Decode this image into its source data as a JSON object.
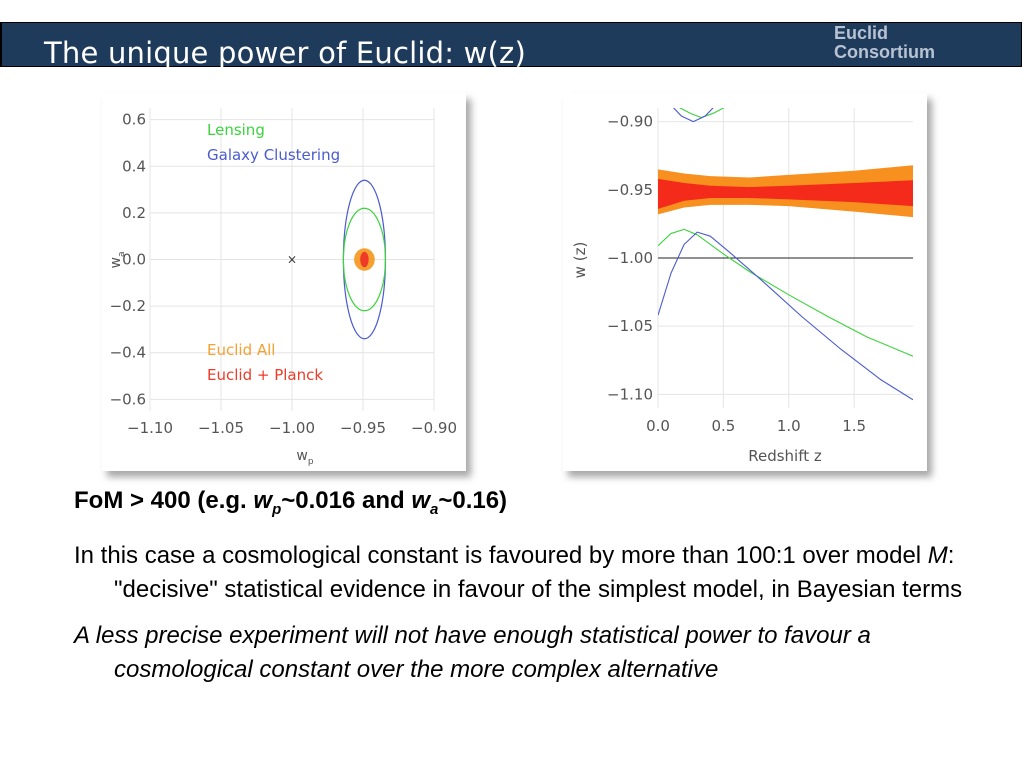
{
  "slide": {
    "title": "The unique power of Euclid: w(z)",
    "logo_line1": "Euclid",
    "logo_line2": "Consortium"
  },
  "colors": {
    "header_bg": "#1f3b5c",
    "lensing": "#3cd23c",
    "clustering": "#4a5bd0",
    "euclid_all": "#f5a030",
    "euclid_planck": "#f03a28",
    "band_outer": "#f7901e",
    "band_inner": "#f42a1a"
  },
  "chart_data": [
    {
      "type": "contour",
      "xlabel": "w",
      "xlabel_sub": "p",
      "ylabel": "w",
      "ylabel_sub": "a",
      "xlim": [
        -1.1,
        -0.9
      ],
      "ylim": [
        -0.65,
        0.65
      ],
      "x_ticks": [
        "−1.10",
        "−1.05",
        "−1.00",
        "−0.95",
        "−0.90"
      ],
      "x_tick_values": [
        -1.1,
        -1.05,
        -1.0,
        -0.95,
        -0.9
      ],
      "y_ticks": [
        "0.6",
        "0.4",
        "0.2",
        "0.0",
        "−0.2",
        "−0.4",
        "−0.6"
      ],
      "y_tick_values": [
        0.6,
        0.4,
        0.2,
        0.0,
        -0.2,
        -0.4,
        -0.6
      ],
      "legend": [
        "Lensing",
        "Galaxy Clustering",
        "Euclid All",
        "Euclid + Planck"
      ],
      "marker": {
        "symbol": "×",
        "x": -1.0,
        "y": 0.0
      },
      "ellipses": [
        {
          "name": "Galaxy Clustering",
          "cx": -0.949,
          "cy": 0.0,
          "rx": 0.0148,
          "ry": 0.34
        },
        {
          "name": "Lensing",
          "cx": -0.949,
          "cy": 0.0,
          "rx": 0.0148,
          "ry": 0.22
        },
        {
          "name": "Euclid All",
          "cx": -0.949,
          "cy": 0.0,
          "rx": 0.0073,
          "ry": 0.048
        },
        {
          "name": "Euclid + Planck",
          "cx": -0.949,
          "cy": 0.0,
          "rx": 0.003,
          "ry": 0.033
        }
      ]
    },
    {
      "type": "line",
      "xlabel": "Redshift z",
      "ylabel": "w (z)",
      "xlim": [
        0.0,
        1.95
      ],
      "ylim": [
        -1.11,
        -0.89
      ],
      "x_ticks": [
        "0.0",
        "0.5",
        "1.0",
        "1.5"
      ],
      "x_tick_values": [
        0.0,
        0.5,
        1.0,
        1.5
      ],
      "y_ticks": [
        "−0.90",
        "−0.95",
        "−1.00",
        "−1.05",
        "−1.10"
      ],
      "y_tick_values": [
        -0.9,
        -0.95,
        -1.0,
        -1.05,
        -1.1
      ],
      "reference_line": -1.0,
      "bands": [
        {
          "name": "outer",
          "upper": [
            [
              0.0,
              -0.935
            ],
            [
              0.2,
              -0.938
            ],
            [
              0.4,
              -0.94
            ],
            [
              0.7,
              -0.941
            ],
            [
              1.0,
              -0.939
            ],
            [
              1.5,
              -0.936
            ],
            [
              1.95,
              -0.932
            ]
          ],
          "lower": [
            [
              0.0,
              -0.968
            ],
            [
              0.2,
              -0.963
            ],
            [
              0.4,
              -0.961
            ],
            [
              0.7,
              -0.961
            ],
            [
              1.0,
              -0.962
            ],
            [
              1.5,
              -0.966
            ],
            [
              1.95,
              -0.97
            ]
          ]
        },
        {
          "name": "inner",
          "upper": [
            [
              0.0,
              -0.942
            ],
            [
              0.2,
              -0.945
            ],
            [
              0.4,
              -0.947
            ],
            [
              0.7,
              -0.948
            ],
            [
              1.0,
              -0.947
            ],
            [
              1.5,
              -0.945
            ],
            [
              1.95,
              -0.943
            ]
          ],
          "lower": [
            [
              0.0,
              -0.964
            ],
            [
              0.2,
              -0.958
            ],
            [
              0.4,
              -0.956
            ],
            [
              0.7,
              -0.956
            ],
            [
              1.0,
              -0.957
            ],
            [
              1.5,
              -0.959
            ],
            [
              1.95,
              -0.962
            ]
          ]
        }
      ],
      "series": [
        {
          "name": "Lensing",
          "color": "lensing",
          "points": [
            [
              0.0,
              -0.991
            ],
            [
              0.1,
              -0.982
            ],
            [
              0.2,
              -0.979
            ],
            [
              0.3,
              -0.983
            ],
            [
              0.5,
              -0.997
            ],
            [
              0.7,
              -1.01
            ],
            [
              1.0,
              -1.027
            ],
            [
              1.3,
              -1.043
            ],
            [
              1.6,
              -1.058
            ],
            [
              1.95,
              -1.072
            ]
          ]
        },
        {
          "name": "Lensing",
          "color": "lensing",
          "points": [
            [
              0.15,
              -0.889
            ],
            [
              0.25,
              -0.894
            ],
            [
              0.33,
              -0.897
            ],
            [
              0.42,
              -0.894
            ],
            [
              0.52,
              -0.889
            ]
          ]
        },
        {
          "name": "Galaxy Clustering",
          "color": "clustering",
          "points": [
            [
              0.0,
              -1.042
            ],
            [
              0.1,
              -1.011
            ],
            [
              0.2,
              -0.99
            ],
            [
              0.3,
              -0.981
            ],
            [
              0.4,
              -0.984
            ],
            [
              0.55,
              -0.996
            ],
            [
              0.8,
              -1.017
            ],
            [
              1.1,
              -1.043
            ],
            [
              1.4,
              -1.067
            ],
            [
              1.7,
              -1.089
            ],
            [
              1.95,
              -1.104
            ]
          ]
        },
        {
          "name": "Galaxy Clustering",
          "color": "clustering",
          "points": [
            [
              0.1,
              -0.888
            ],
            [
              0.18,
              -0.896
            ],
            [
              0.27,
              -0.9
            ],
            [
              0.36,
              -0.896
            ],
            [
              0.44,
              -0.888
            ]
          ]
        }
      ]
    }
  ],
  "text": {
    "p1_a": "FoM > 400 (e.g. ",
    "p1_wp": "w",
    "p1_wp_sub": "p",
    "p1_b": "~0.016 and ",
    "p1_wa": "w",
    "p1_wa_sub": "a",
    "p1_c": "~0.16)",
    "p2_a": "In this case a cosmological constant is favoured by more than 100:1 over model ",
    "p2_m": "M",
    "p2_b": ": \"decisive\" statistical evidence in favour of the simplest model, in Bayesian terms",
    "p3": "A less precise experiment will not have enough statistical power to favour a cosmological constant over the more complex alternative"
  }
}
